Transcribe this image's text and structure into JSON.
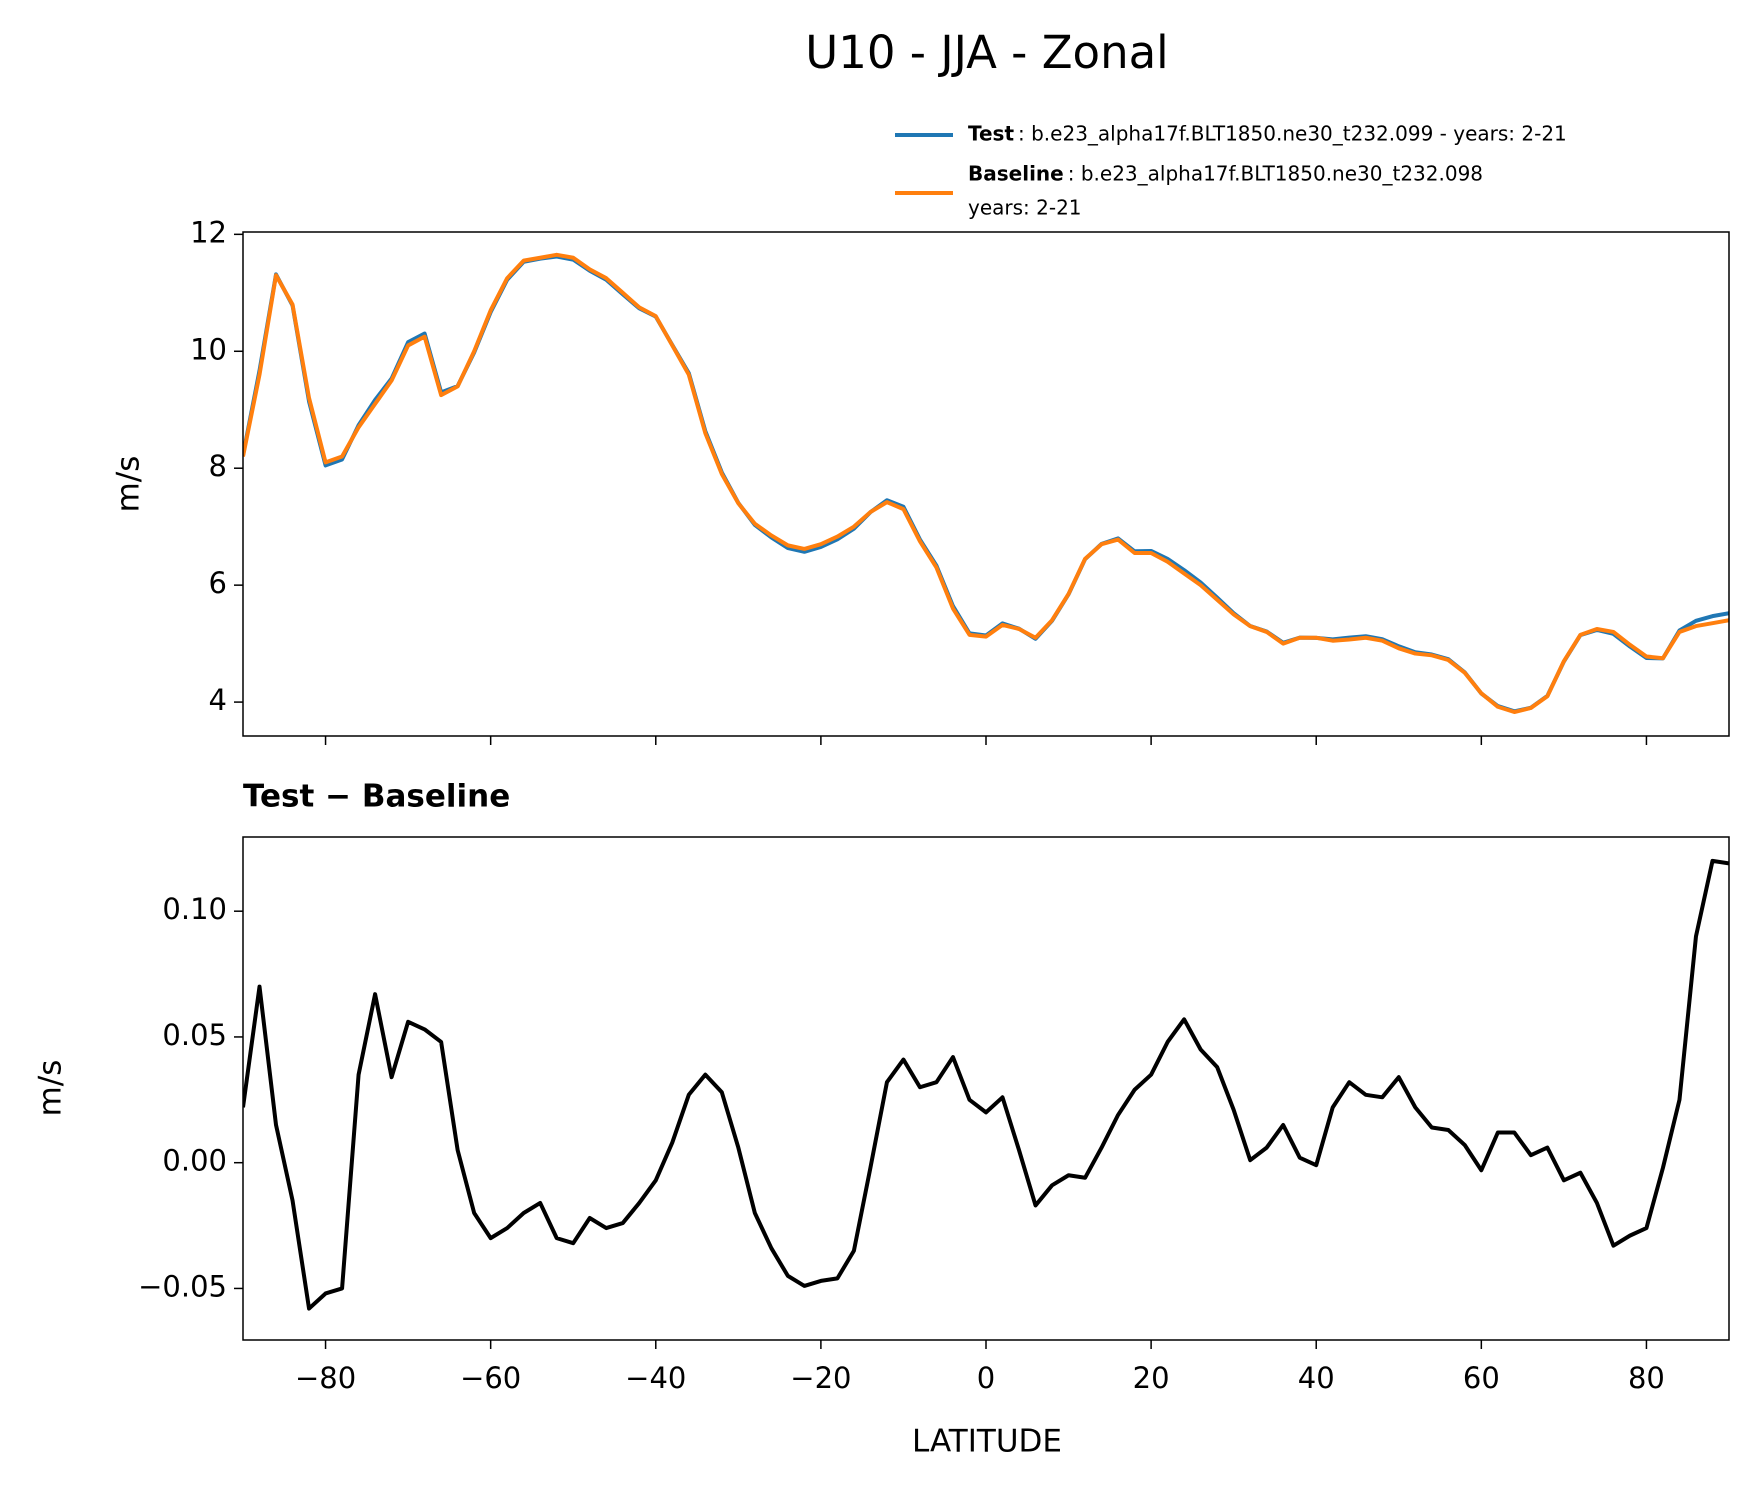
{
  "chart_data": [
    {
      "type": "line",
      "title": "U10 - JJA - Zonal",
      "ylabel": "m/s",
      "x": [
        -90,
        -88,
        -86,
        -84,
        -82,
        -80,
        -78,
        -76,
        -74,
        -72,
        -70,
        -68,
        -66,
        -64,
        -62,
        -60,
        -58,
        -56,
        -54,
        -52,
        -50,
        -48,
        -46,
        -44,
        -42,
        -40,
        -38,
        -36,
        -34,
        -32,
        -30,
        -28,
        -26,
        -24,
        -22,
        -20,
        -18,
        -16,
        -14,
        -12,
        -10,
        -8,
        -6,
        -4,
        -2,
        0,
        2,
        4,
        6,
        8,
        10,
        12,
        14,
        16,
        18,
        20,
        22,
        24,
        26,
        28,
        30,
        32,
        34,
        36,
        38,
        40,
        42,
        44,
        46,
        48,
        50,
        52,
        54,
        56,
        58,
        60,
        62,
        64,
        66,
        68,
        70,
        72,
        74,
        76,
        78,
        80,
        82,
        84,
        86,
        88,
        90
      ],
      "series": [
        {
          "name": "Test",
          "description_lines": [
            ": b.e23_alpha17f.BLT1850.ne30_t232.099 - years: 2-21"
          ],
          "color": "#1f77b4",
          "values": [
            8.222,
            9.67,
            11.315,
            10.785,
            9.142,
            8.048,
            8.15,
            8.735,
            9.167,
            9.534,
            10.156,
            10.303,
            9.298,
            9.405,
            9.98,
            10.67,
            11.224,
            11.53,
            11.584,
            11.62,
            11.568,
            11.378,
            11.224,
            10.976,
            10.734,
            10.593,
            10.108,
            9.627,
            8.635,
            7.928,
            7.406,
            7.03,
            6.816,
            6.635,
            6.571,
            6.653,
            6.784,
            6.965,
            7.248,
            7.452,
            7.341,
            6.78,
            6.332,
            5.642,
            5.175,
            5.14,
            5.346,
            5.255,
            5.083,
            5.391,
            5.845,
            6.444,
            6.706,
            6.799,
            6.579,
            6.585,
            6.448,
            6.257,
            6.045,
            5.788,
            5.521,
            5.301,
            5.206,
            5.015,
            5.102,
            5.099,
            5.072,
            5.102,
            5.127,
            5.076,
            4.954,
            4.852,
            4.814,
            4.733,
            4.507,
            4.147,
            3.932,
            3.842,
            3.903,
            4.106,
            4.693,
            5.146,
            5.234,
            5.167,
            4.951,
            4.754,
            4.748,
            5.225,
            5.39,
            5.47,
            5.519
          ]
        },
        {
          "name": "Baseline",
          "description_lines": [
            ": b.e23_alpha17f.BLT1850.ne30_t232.098",
            "years: 2-21"
          ],
          "color": "#ff7f0e",
          "values": [
            8.2,
            9.6,
            11.3,
            10.8,
            9.2,
            8.1,
            8.2,
            8.7,
            9.1,
            9.5,
            10.1,
            10.25,
            9.25,
            9.4,
            10.0,
            10.7,
            11.25,
            11.55,
            11.6,
            11.65,
            11.6,
            11.4,
            11.25,
            11.0,
            10.75,
            10.6,
            10.1,
            9.6,
            8.6,
            7.9,
            7.4,
            7.05,
            6.85,
            6.68,
            6.62,
            6.7,
            6.83,
            7.0,
            7.25,
            7.42,
            7.3,
            6.75,
            6.3,
            5.6,
            5.15,
            5.12,
            5.32,
            5.25,
            5.1,
            5.4,
            5.85,
            6.45,
            6.7,
            6.78,
            6.55,
            6.55,
            6.4,
            6.2,
            6.0,
            5.75,
            5.5,
            5.3,
            5.2,
            5.0,
            5.1,
            5.1,
            5.05,
            5.07,
            5.1,
            5.05,
            4.92,
            4.83,
            4.8,
            4.72,
            4.5,
            4.15,
            3.92,
            3.83,
            3.9,
            4.1,
            4.7,
            5.15,
            5.25,
            5.2,
            4.98,
            4.78,
            4.75,
            5.2,
            5.3,
            5.35,
            5.4
          ]
        }
      ],
      "xlim": [
        -90,
        90
      ],
      "ylim": [
        3.42,
        12.04
      ],
      "yticks": [
        4,
        6,
        8,
        10,
        12
      ]
    },
    {
      "type": "line",
      "title": "Test − Baseline",
      "ylabel": "m/s",
      "xlabel": "LATITUDE",
      "x": [
        -90,
        -88,
        -86,
        -84,
        -82,
        -80,
        -78,
        -76,
        -74,
        -72,
        -70,
        -68,
        -66,
        -64,
        -62,
        -60,
        -58,
        -56,
        -54,
        -52,
        -50,
        -48,
        -46,
        -44,
        -42,
        -40,
        -38,
        -36,
        -34,
        -32,
        -30,
        -28,
        -26,
        -24,
        -22,
        -20,
        -18,
        -16,
        -14,
        -12,
        -10,
        -8,
        -6,
        -4,
        -2,
        0,
        2,
        4,
        6,
        8,
        10,
        12,
        14,
        16,
        18,
        20,
        22,
        24,
        26,
        28,
        30,
        32,
        34,
        36,
        38,
        40,
        42,
        44,
        46,
        48,
        50,
        52,
        54,
        56,
        58,
        60,
        62,
        64,
        66,
        68,
        70,
        72,
        74,
        76,
        78,
        80,
        82,
        84,
        86,
        88,
        90
      ],
      "series": [
        {
          "color": "#000000",
          "values": [
            0.022,
            0.07,
            0.015,
            -0.015,
            -0.058,
            -0.052,
            -0.05,
            0.035,
            0.067,
            0.034,
            0.056,
            0.053,
            0.048,
            0.005,
            -0.02,
            -0.03,
            -0.026,
            -0.02,
            -0.016,
            -0.03,
            -0.032,
            -0.022,
            -0.026,
            -0.024,
            -0.016,
            -0.007,
            0.008,
            0.027,
            0.035,
            0.028,
            0.006,
            -0.02,
            -0.034,
            -0.045,
            -0.049,
            -0.047,
            -0.046,
            -0.035,
            -0.002,
            0.032,
            0.041,
            0.03,
            0.032,
            0.042,
            0.025,
            0.02,
            0.026,
            0.005,
            -0.017,
            -0.009,
            -0.005,
            -0.006,
            0.006,
            0.019,
            0.029,
            0.035,
            0.048,
            0.057,
            0.045,
            0.038,
            0.021,
            0.001,
            0.006,
            0.015,
            0.002,
            -0.001,
            0.022,
            0.032,
            0.027,
            0.026,
            0.034,
            0.022,
            0.014,
            0.013,
            0.007,
            -0.003,
            0.012,
            0.012,
            0.003,
            0.006,
            -0.007,
            -0.004,
            -0.016,
            -0.033,
            -0.029,
            -0.026,
            -0.002,
            0.025,
            0.09,
            0.12,
            0.119
          ]
        }
      ],
      "xlim": [
        -90,
        90
      ],
      "ylim": [
        -0.0705,
        0.1295
      ],
      "yticks": [
        {
          "value": -0.05,
          "label": "−0.05"
        },
        {
          "value": 0,
          "label": "0.00"
        },
        {
          "value": 0.05,
          "label": "0.05"
        },
        {
          "value": 0.1,
          "label": "0.10"
        }
      ],
      "xticks": [
        {
          "value": -80,
          "label": "−80"
        },
        {
          "value": -60,
          "label": "−60"
        },
        {
          "value": -40,
          "label": "−40"
        },
        {
          "value": -20,
          "label": "−20"
        },
        0,
        20,
        40,
        60,
        80
      ]
    }
  ]
}
